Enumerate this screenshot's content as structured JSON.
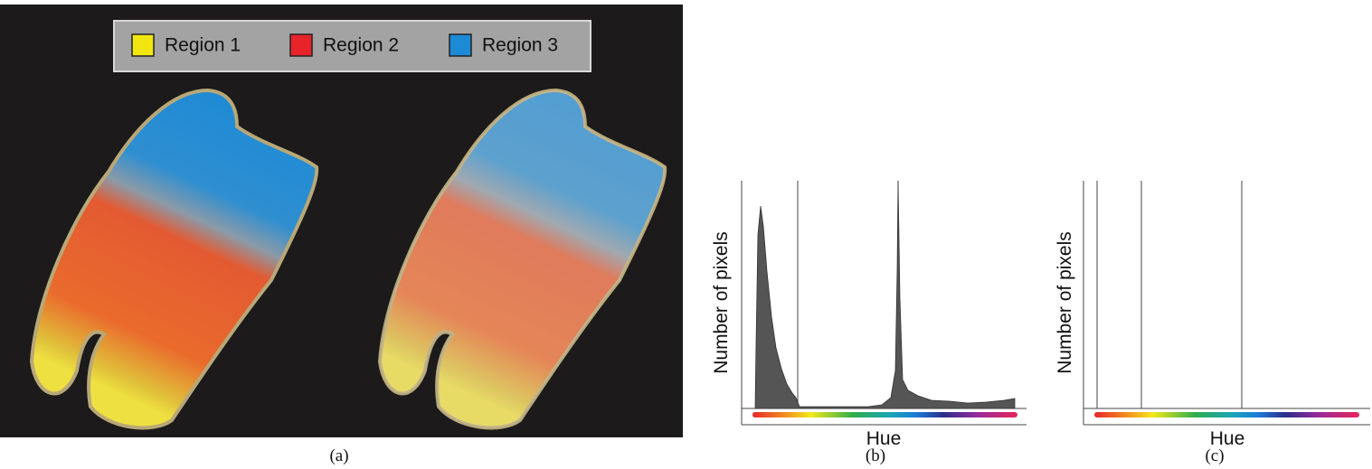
{
  "legend": [
    {
      "label": "Region 1",
      "color": "#f2e611"
    },
    {
      "label": "Region 2",
      "color": "#e8242a"
    },
    {
      "label": "Region 3",
      "color": "#1d8ad6"
    }
  ],
  "panels": [
    {
      "caption": "(a)"
    },
    {
      "caption": "(b)",
      "y_label": "Number of pixels",
      "x_label": "Hue"
    },
    {
      "caption": "(c)",
      "y_label": "Number of pixels",
      "x_label": "Hue"
    }
  ]
}
